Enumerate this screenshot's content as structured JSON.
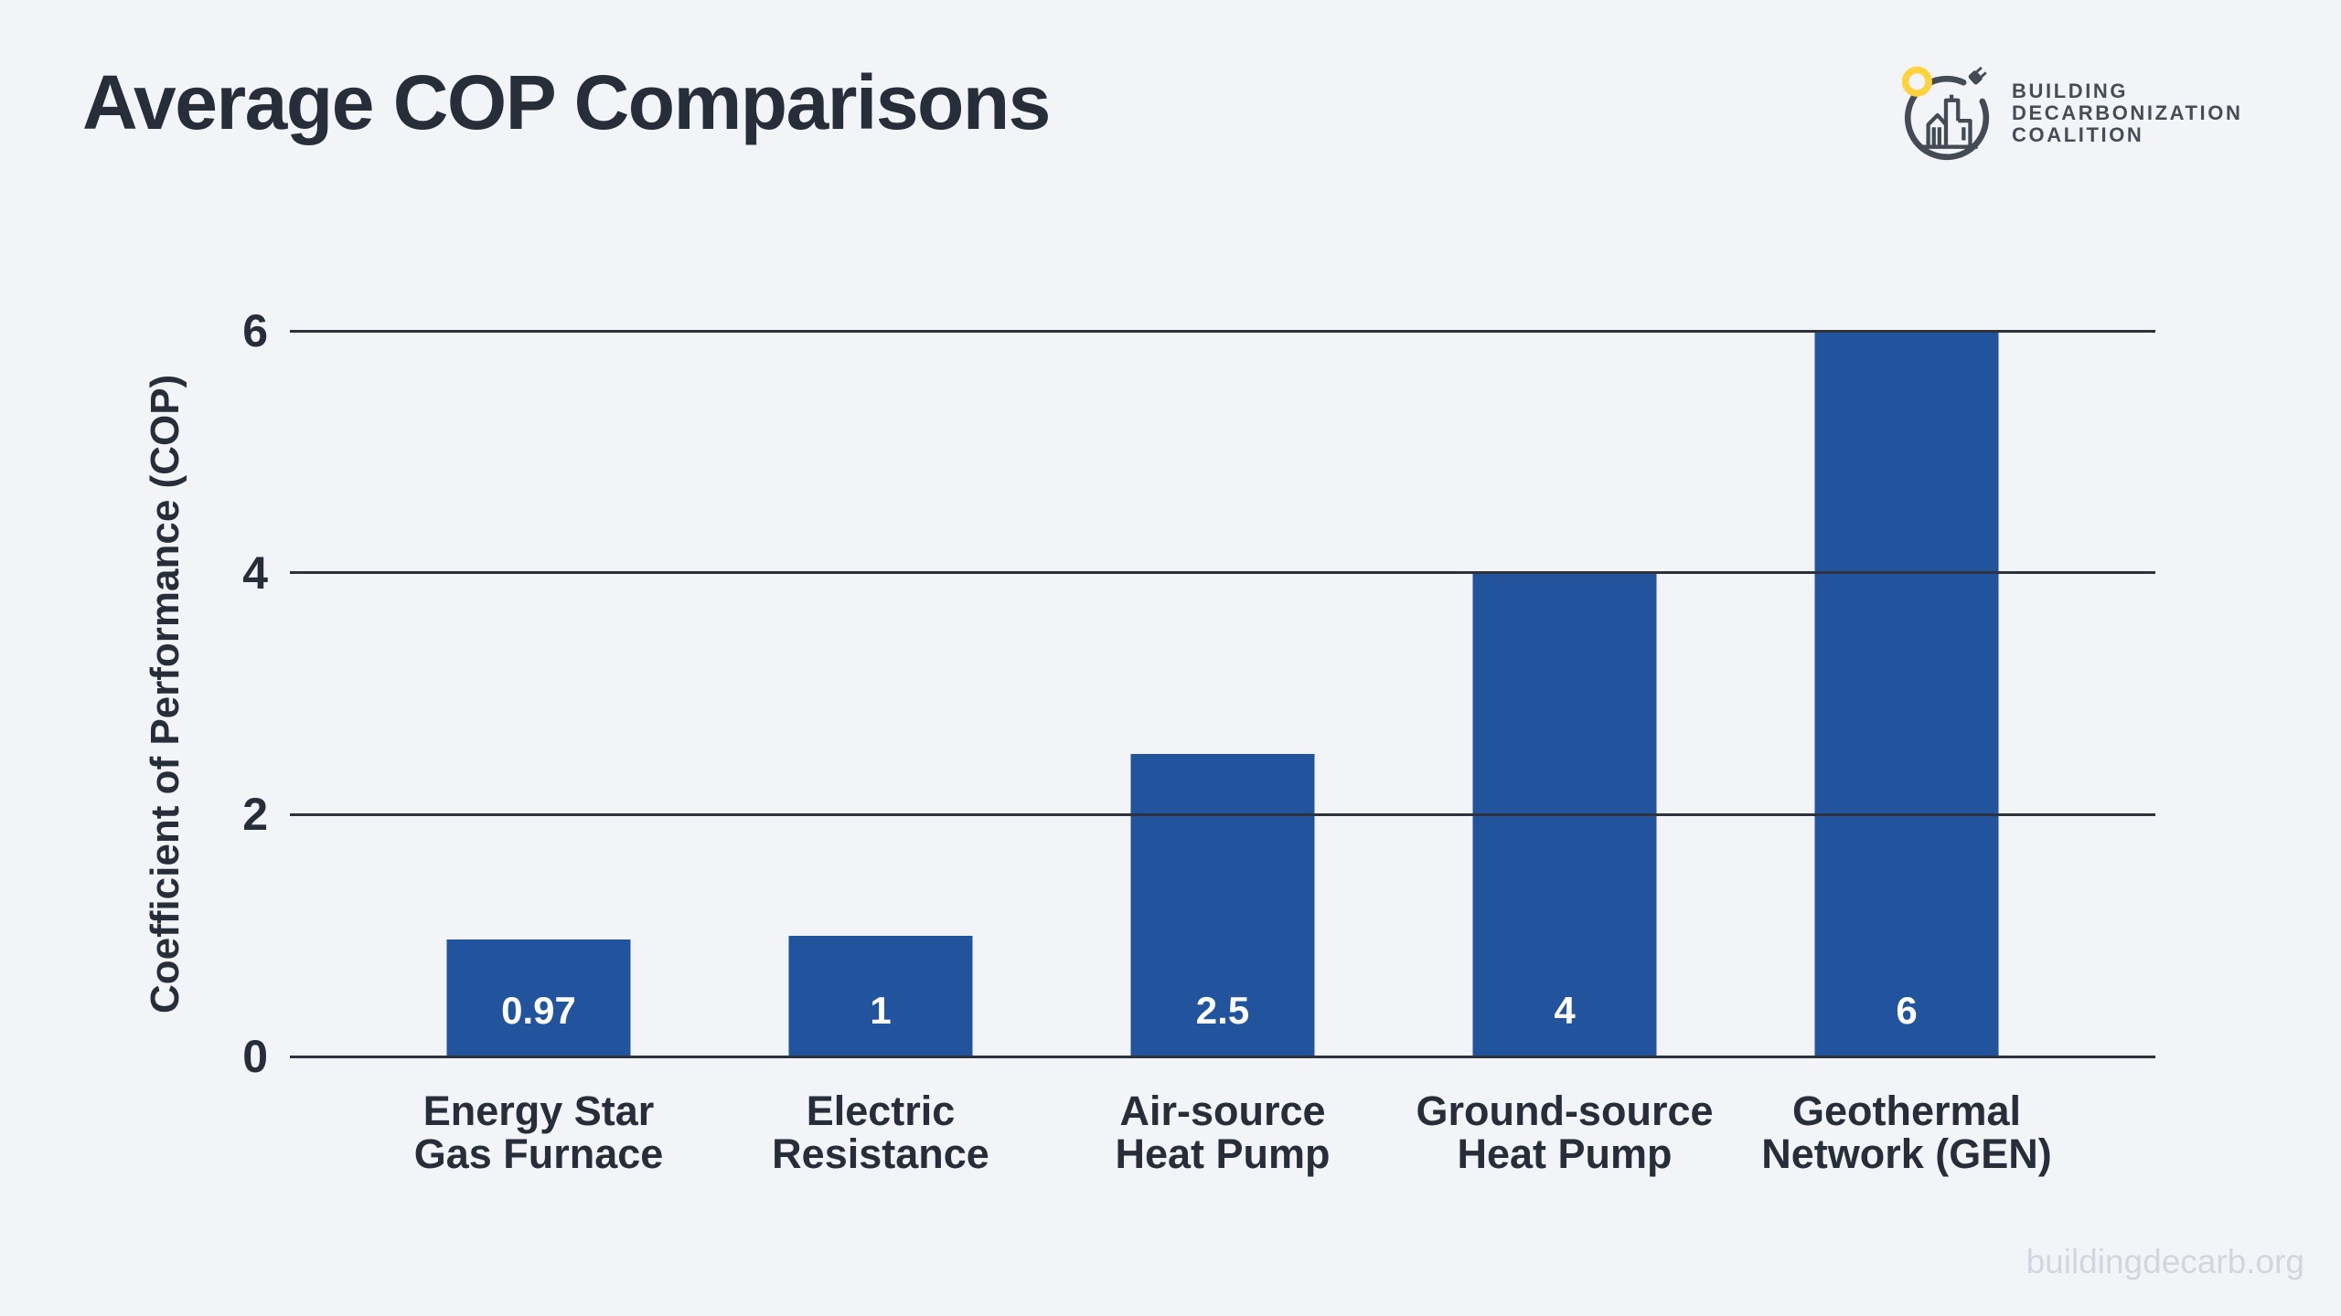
{
  "page": {
    "title": "Average COP Comparisons",
    "background": "#f2f4f8",
    "footer": "buildingdecarb.org"
  },
  "logo": {
    "line1": "BUILDING",
    "line2": "DECARBONIZATION",
    "line3": "COALITION",
    "mark_dark": "#454b55",
    "mark_yellow": "#ffd33e"
  },
  "chart_data": {
    "type": "bar",
    "title": "Average COP Comparisons",
    "categories": [
      "Energy Star\nGas Furnace",
      "Electric\nResistance",
      "Air-source\nHeat Pump",
      "Ground-source\nHeat Pump",
      "Geothermal\nNetwork (GEN)"
    ],
    "values": [
      0.97,
      1,
      2.5,
      4,
      6
    ],
    "value_labels": [
      "0.97",
      "1",
      "2.5",
      "4",
      "6"
    ],
    "xlabel": "",
    "ylabel": "Coefficient of Performance (COP)",
    "yticks": [
      0,
      2,
      4,
      6
    ],
    "ylim": [
      0,
      6
    ],
    "grid": "on",
    "legend": "none",
    "bar_color": "#21549c",
    "grid_color": "#2d323c",
    "label_color": "#272e3a",
    "bar_label_color": "#ffffff"
  }
}
